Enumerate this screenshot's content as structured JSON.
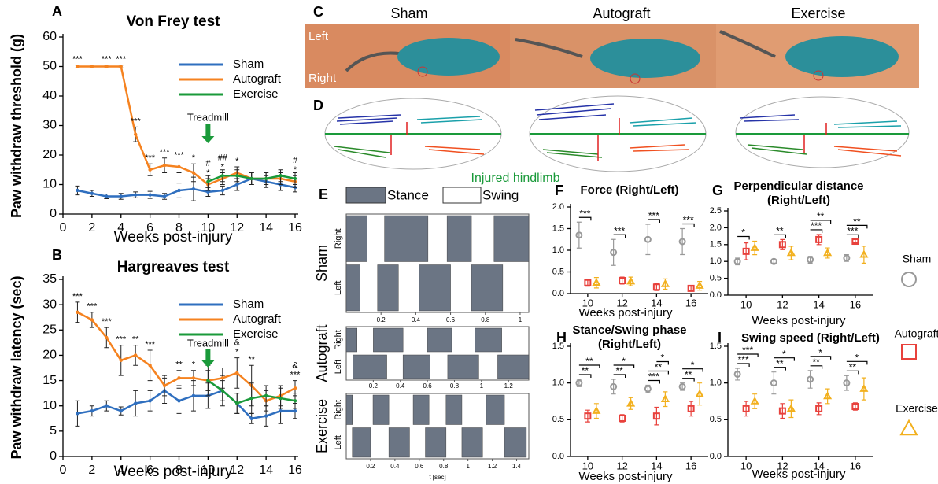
{
  "chart_data": [
    {
      "type": "line",
      "panel": "A",
      "title": "Von Frey test",
      "ylabel": "Paw withdraw threshold (g)",
      "xlabel": "Weeks post-injury",
      "x": [
        1,
        2,
        3,
        4,
        5,
        6,
        7,
        8,
        9,
        10,
        11,
        12,
        13,
        14,
        15,
        16
      ],
      "xlim": [
        0,
        16
      ],
      "xticks": [
        0,
        2,
        4,
        6,
        8,
        10,
        12,
        14,
        16
      ],
      "ylim": [
        0,
        60
      ],
      "yticks": [
        0,
        10,
        20,
        30,
        40,
        50,
        60
      ],
      "series": [
        {
          "name": "Sham",
          "color": "#2f6fbf",
          "values": [
            8,
            7,
            6,
            6,
            6.5,
            6.5,
            6,
            8,
            8.5,
            7.5,
            8,
            10,
            12,
            11,
            10,
            9
          ],
          "errors": [
            1.5,
            1,
            0.8,
            1,
            1,
            1.2,
            1,
            2.5,
            4,
            1.5,
            1.5,
            2,
            2,
            2,
            2,
            1.5
          ]
        },
        {
          "name": "Autograft",
          "color": "#f5821f",
          "values": [
            50,
            50,
            50,
            50,
            27,
            15,
            16.5,
            16,
            14,
            10,
            12,
            14,
            12,
            12,
            12,
            11
          ],
          "errors": [
            0.5,
            0.5,
            0.5,
            0.5,
            2.5,
            2,
            2.5,
            2,
            3,
            2,
            2,
            2,
            2,
            2,
            2,
            2
          ],
          "sig": [
            "***",
            null,
            "***",
            "***",
            "***",
            "***",
            "***",
            "***",
            "*",
            "*",
            "*",
            "*",
            null,
            null,
            null,
            "*"
          ],
          "sig2": [
            null,
            null,
            null,
            null,
            null,
            null,
            null,
            null,
            null,
            "#",
            "##",
            null,
            null,
            null,
            null,
            "#"
          ]
        },
        {
          "name": "Exercise",
          "color": "#1a9a3a",
          "values": [
            null,
            null,
            null,
            null,
            null,
            null,
            null,
            null,
            null,
            11,
            13,
            13,
            12,
            12,
            13,
            12
          ],
          "errors": [
            null,
            null,
            null,
            null,
            null,
            null,
            null,
            null,
            null,
            2,
            2,
            2,
            2,
            2,
            2,
            2
          ]
        }
      ],
      "annotation": {
        "text": "Treadmill",
        "x": 10
      }
    },
    {
      "type": "line",
      "panel": "B",
      "title": "Hargreaves test",
      "ylabel": "Paw withdraw latency (sec)",
      "xlabel": "Weeks post-injury",
      "x": [
        1,
        2,
        3,
        4,
        5,
        6,
        7,
        8,
        9,
        10,
        11,
        12,
        13,
        14,
        15,
        16
      ],
      "xlim": [
        0,
        16
      ],
      "xticks": [
        0,
        2,
        4,
        6,
        8,
        10,
        12,
        14,
        16
      ],
      "ylim": [
        0,
        35
      ],
      "yticks": [
        0,
        5,
        10,
        15,
        20,
        25,
        30,
        35
      ],
      "series": [
        {
          "name": "Sham",
          "color": "#2f6fbf",
          "values": [
            8.5,
            9,
            10,
            9,
            10.5,
            11,
            13,
            11,
            12,
            12,
            13,
            10.5,
            7.5,
            8,
            9,
            9
          ],
          "errors": [
            2.5,
            1,
            1,
            0.8,
            2.5,
            2,
            2.5,
            2.5,
            3,
            2.5,
            3,
            2,
            1,
            2,
            2.5,
            1.5
          ]
        },
        {
          "name": "Autograft",
          "color": "#f5821f",
          "values": [
            28.5,
            27,
            23.5,
            19,
            20,
            18,
            14,
            15.5,
            15.5,
            15,
            15.5,
            16.5,
            14,
            11,
            12,
            13.5
          ],
          "errors": [
            2,
            1.5,
            2,
            3,
            2,
            3,
            2,
            1.5,
            1.5,
            2,
            2,
            3,
            4,
            2,
            2,
            1.5
          ],
          "sig": [
            "***",
            "***",
            "***",
            "***",
            "**",
            "***",
            null,
            "**",
            "*",
            null,
            null,
            "*",
            "**",
            null,
            null,
            "***"
          ],
          "sig2": [
            null,
            null,
            null,
            null,
            null,
            null,
            null,
            null,
            null,
            null,
            null,
            "&",
            null,
            null,
            null,
            "&"
          ]
        },
        {
          "name": "Exercise",
          "color": "#1a9a3a",
          "values": [
            null,
            null,
            null,
            null,
            null,
            null,
            null,
            null,
            null,
            15,
            13,
            10.5,
            11.5,
            12,
            11.5,
            11
          ],
          "errors": [
            null,
            null,
            null,
            null,
            null,
            null,
            null,
            null,
            null,
            3,
            2,
            2,
            3,
            2,
            2,
            1.5
          ]
        }
      ],
      "annotation": {
        "text": "Treadmill",
        "x": 10
      }
    },
    {
      "type": "dot",
      "panel": "F",
      "title": "Force (Right/Left)",
      "xlabel": "Weeks post-injury",
      "categories": [
        "10",
        "12",
        "14",
        "16"
      ],
      "ylim": [
        0,
        2
      ],
      "yticks": [
        {
          "value": 0,
          "label": "0.0"
        },
        0.5,
        {
          "value": 1,
          "label": "1.0"
        },
        1.5,
        {
          "value": 2,
          "label": "2.0"
        }
      ],
      "series": [
        {
          "name": "Sham",
          "color": "#999999",
          "marker": "circle",
          "values": [
            1.35,
            0.95,
            1.25,
            1.2
          ],
          "errors": [
            0.3,
            0.3,
            0.35,
            0.3
          ]
        },
        {
          "name": "Autograft",
          "color": "#e8413c",
          "marker": "square",
          "values": [
            0.25,
            0.3,
            0.15,
            0.12
          ],
          "errors": [
            0.08,
            0.08,
            0.08,
            0.05
          ]
        },
        {
          "name": "Exercise",
          "color": "#f2b01e",
          "marker": "triangle",
          "values": [
            0.25,
            0.28,
            0.22,
            0.18
          ],
          "errors": [
            0.12,
            0.1,
            0.12,
            0.1
          ]
        }
      ],
      "brackets": [
        [
          "***"
        ],
        [
          "***"
        ],
        [
          "***"
        ],
        [
          "***"
        ]
      ]
    },
    {
      "type": "dot",
      "panel": "G",
      "title": "Perpendicular distance",
      "subtitle": "(Right/Left)",
      "xlabel": "Weeks post-injury",
      "categories": [
        "10",
        "12",
        "14",
        "16"
      ],
      "ylim": [
        0,
        2.5
      ],
      "yticks": [
        {
          "value": 0,
          "label": "0.0"
        },
        0.5,
        {
          "value": 1,
          "label": "1.0"
        },
        1.5,
        {
          "value": 2,
          "label": "2.0"
        },
        2.5
      ],
      "series": [
        {
          "name": "Sham",
          "color": "#999999",
          "marker": "circle",
          "values": [
            1.0,
            1.0,
            1.05,
            1.1
          ],
          "errors": [
            0.1,
            0.05,
            0.1,
            0.1
          ]
        },
        {
          "name": "Autograft",
          "color": "#e8413c",
          "marker": "square",
          "values": [
            1.3,
            1.5,
            1.65,
            1.6
          ],
          "errors": [
            0.25,
            0.15,
            0.15,
            0.05
          ]
        },
        {
          "name": "Exercise",
          "color": "#f2b01e",
          "marker": "triangle",
          "values": [
            1.4,
            1.25,
            1.25,
            1.2
          ],
          "errors": [
            0.2,
            0.2,
            0.15,
            0.25
          ]
        }
      ],
      "brackets": [
        [
          "*"
        ],
        [
          "**"
        ],
        [
          "***",
          "**"
        ],
        [
          "***",
          "**"
        ]
      ]
    },
    {
      "type": "dot",
      "panel": "H",
      "title": "Stance/Swing phase",
      "subtitle": "(Right/Left)",
      "xlabel": "Weeks post-injury",
      "categories": [
        "10",
        "12",
        "14",
        "16"
      ],
      "ylim": [
        0,
        1.5
      ],
      "yticks": [
        {
          "value": 0,
          "label": "0.0"
        },
        0.5,
        {
          "value": 1,
          "label": "1.0"
        },
        1.5
      ],
      "series": [
        {
          "name": "Sham",
          "color": "#999999",
          "marker": "circle",
          "values": [
            1.0,
            0.95,
            0.92,
            0.95
          ],
          "errors": [
            0.05,
            0.1,
            0.05,
            0.05
          ]
        },
        {
          "name": "Autograft",
          "color": "#e8413c",
          "marker": "square",
          "values": [
            0.55,
            0.52,
            0.55,
            0.65
          ],
          "errors": [
            0.08,
            0.05,
            0.12,
            0.1
          ]
        },
        {
          "name": "Exercise",
          "color": "#f2b01e",
          "marker": "triangle",
          "values": [
            0.62,
            0.72,
            0.78,
            0.85
          ],
          "errors": [
            0.1,
            0.08,
            0.1,
            0.15
          ]
        }
      ],
      "brackets": [
        [
          "**",
          "**"
        ],
        [
          "**",
          "*"
        ],
        [
          "***",
          "**",
          "*"
        ],
        [
          "**",
          "*"
        ]
      ]
    },
    {
      "type": "dot",
      "panel": "I",
      "title": "Swing speed (Right/Left)",
      "xlabel": "Weeks post-injury",
      "categories": [
        "10",
        "12",
        "14",
        "16"
      ],
      "ylim": [
        0,
        1.5
      ],
      "yticks": [
        {
          "value": 0,
          "label": "0.0"
        },
        0.5,
        {
          "value": 1,
          "label": "1.0"
        },
        1.5
      ],
      "series": [
        {
          "name": "Sham",
          "color": "#999999",
          "marker": "circle",
          "values": [
            1.12,
            1.0,
            1.05,
            1.0
          ],
          "errors": [
            0.08,
            0.15,
            0.12,
            0.1
          ]
        },
        {
          "name": "Autograft",
          "color": "#e8413c",
          "marker": "square",
          "values": [
            0.65,
            0.62,
            0.65,
            0.68
          ],
          "errors": [
            0.1,
            0.1,
            0.08,
            0.05
          ]
        },
        {
          "name": "Exercise",
          "color": "#f2b01e",
          "marker": "triangle",
          "values": [
            0.75,
            0.65,
            0.82,
            0.92
          ],
          "errors": [
            0.1,
            0.12,
            0.1,
            0.15
          ]
        }
      ],
      "brackets": [
        [
          "***",
          "***"
        ],
        [
          "**",
          "*"
        ],
        [
          "**",
          "*"
        ],
        [
          "**",
          "*"
        ]
      ]
    },
    {
      "type": "gait",
      "title": "Sham",
      "rows": [
        "Right",
        "Left"
      ],
      "xlim": [
        0,
        1.05
      ],
      "xticks": [
        0.2,
        0.4,
        0.6,
        0.8,
        1
      ],
      "stance": [
        [
          [
            0,
            0.12
          ],
          [
            0.22,
            0.47
          ],
          [
            0.58,
            0.72
          ],
          [
            0.85,
            1.05
          ]
        ],
        [
          [
            0,
            0.08
          ],
          [
            0.18,
            0.3
          ],
          [
            0.42,
            0.6
          ],
          [
            0.72,
            0.9
          ]
        ]
      ]
    },
    {
      "type": "gait",
      "title": "Autograft",
      "rows": [
        "Right",
        "Left"
      ],
      "xlim": [
        0,
        1.35
      ],
      "xticks": [
        0.2,
        0.4,
        0.6,
        0.8,
        1,
        1.2
      ],
      "stance": [
        [
          [
            0,
            0.08
          ],
          [
            0.2,
            0.42
          ],
          [
            0.6,
            0.78
          ],
          [
            0.95,
            1.15
          ]
        ],
        [
          [
            0.05,
            0.3
          ],
          [
            0.42,
            0.62
          ],
          [
            0.75,
            0.98
          ],
          [
            1.12,
            1.35
          ]
        ]
      ]
    },
    {
      "type": "gait",
      "title": "Exercise",
      "rows": [
        "Right",
        "Left"
      ],
      "xlim": [
        0,
        1.5
      ],
      "xticks": [
        0.2,
        0.4,
        0.6,
        0.8,
        1,
        1.2,
        1.4
      ],
      "xlabel": "t [sec]",
      "stance": [
        [
          [
            0,
            0.05
          ],
          [
            0.22,
            0.35
          ],
          [
            0.55,
            0.68
          ],
          [
            0.82,
            0.95
          ],
          [
            1.15,
            1.3
          ]
        ],
        [
          [
            0.05,
            0.2
          ],
          [
            0.35,
            0.52
          ],
          [
            0.65,
            0.82
          ],
          [
            0.95,
            1.12
          ],
          [
            1.3,
            1.48
          ]
        ]
      ]
    }
  ],
  "panel_c": {
    "label": "C",
    "columns": [
      "Sham",
      "Autograft",
      "Exercise"
    ],
    "left": "Left",
    "right": "Right"
  },
  "panel_d": {
    "label": "D",
    "note": "Injured hindlimb"
  },
  "panel_e": {
    "label": "E",
    "legend": [
      "Stance",
      "Swing"
    ]
  }
}
